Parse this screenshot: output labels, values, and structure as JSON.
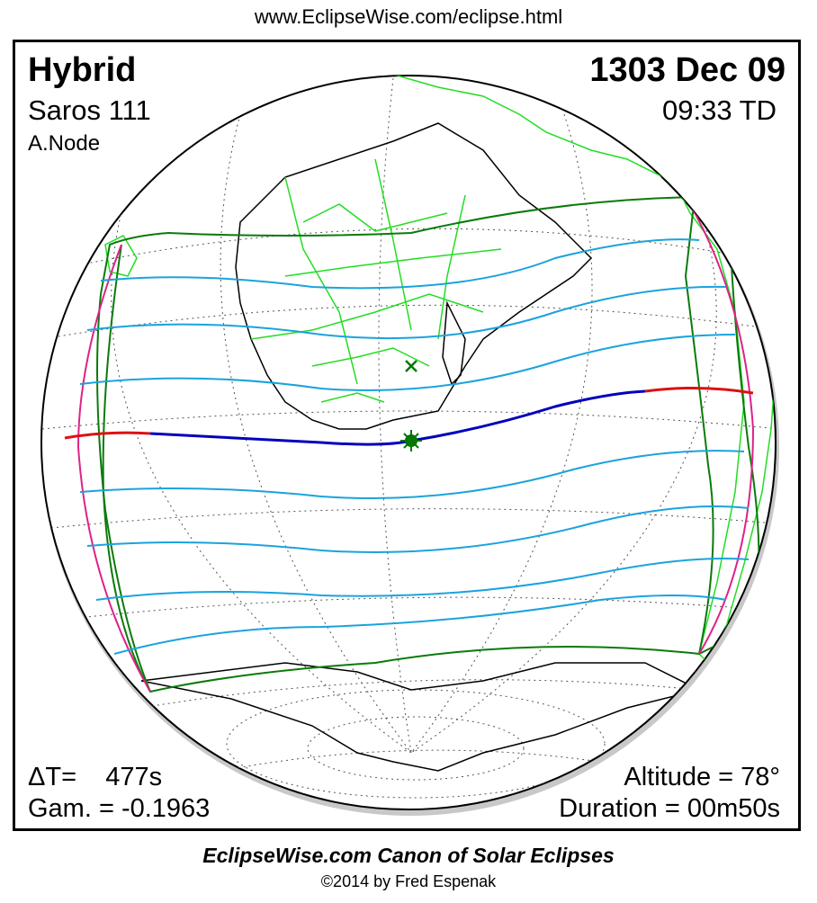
{
  "header": {
    "url": "www.EclipseWise.com/eclipse.html"
  },
  "eclipse": {
    "type": "Hybrid",
    "date": "1303 Dec 09",
    "saros": "Saros 111",
    "time": "09:33 TD",
    "node": "A.Node",
    "delta_t_label": "ΔT=",
    "delta_t_value": "477s",
    "gamma": "Gam. = -0.1963",
    "altitude": "Altitude = 78°",
    "duration": "Duration = 00m50s"
  },
  "footer": {
    "canon": "EclipseWise.com Canon of Solar Eclipses",
    "copyright": "©2014 by Fred Espenak"
  },
  "colors": {
    "continents": "#22dd22",
    "coastline": "#000000",
    "graticule": "#555555",
    "penumbral_limits": "#0a7a0a",
    "partial_lines": "#1aa3dd",
    "annular_path": "#dd1111",
    "total_path": "#0000bb",
    "rise_set": "#dd2288",
    "greatest_eclipse": "#007700"
  }
}
